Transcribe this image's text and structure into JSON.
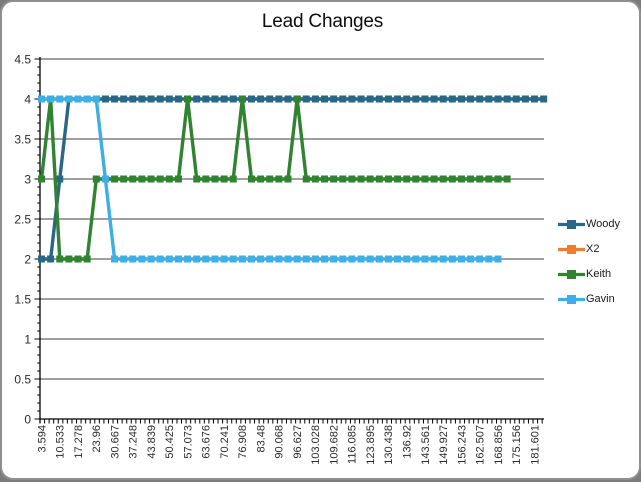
{
  "chart_data": {
    "type": "line",
    "title": "Lead Changes",
    "xlabel": "",
    "ylabel": "",
    "ylim": [
      0,
      4.5
    ],
    "y_tick_step": 0.5,
    "y_tick_labels": [
      "4.5",
      "4",
      "3.5",
      "3",
      "2.5",
      "2",
      "1.5",
      "1",
      "0.5",
      "0"
    ],
    "x_tick_labels": [
      "3.594",
      "10.533",
      "17.278",
      "23.96",
      "30.667",
      "37.248",
      "43.839",
      "50.425",
      "57.073",
      "63.676",
      "70.241",
      "76.908",
      "83.48",
      "90.068",
      "96.627",
      "103.028",
      "109.682",
      "116.085",
      "123.895",
      "130.438",
      "136.92",
      "143.561",
      "149.927",
      "156.243",
      "162.507",
      "168.856",
      "175.156",
      "181.601"
    ],
    "x_label_interval_note": "x labels are shown under every 2nd data point (points 1,3,5,... of 56)",
    "n_points": 56,
    "grid": "horizontal",
    "legend_position": "right",
    "axis_color": "#000000",
    "gridline_color": "#3f3f3f",
    "series": [
      {
        "name": "Woody",
        "color": "#2A6786",
        "values": [
          2,
          2,
          3,
          4,
          4,
          4,
          4,
          4,
          4,
          4,
          4,
          4,
          4,
          4,
          4,
          4,
          4,
          4,
          4,
          4,
          4,
          4,
          4,
          4,
          4,
          4,
          4,
          4,
          4,
          4,
          4,
          4,
          4,
          4,
          4,
          4,
          4,
          4,
          4,
          4,
          4,
          4,
          4,
          4,
          4,
          4,
          4,
          4,
          4,
          4,
          4,
          4,
          4,
          4,
          4,
          4
        ]
      },
      {
        "name": "X2",
        "color": "#ED7D31",
        "values": []
      },
      {
        "name": "Keith",
        "color": "#318331",
        "values": [
          3,
          4,
          2,
          2,
          2,
          2,
          3,
          3,
          3,
          3,
          3,
          3,
          3,
          3,
          3,
          3,
          4,
          3,
          3,
          3,
          3,
          3,
          4,
          3,
          3,
          3,
          3,
          3,
          4,
          3,
          3,
          3,
          3,
          3,
          3,
          3,
          3,
          3,
          3,
          3,
          3,
          3,
          3,
          3,
          3,
          3,
          3,
          3,
          3,
          3,
          3,
          3
        ]
      },
      {
        "name": "Gavin",
        "color": "#3FAEE3",
        "values": [
          4,
          4,
          4,
          4,
          4,
          4,
          4,
          3,
          2,
          2,
          2,
          2,
          2,
          2,
          2,
          2,
          2,
          2,
          2,
          2,
          2,
          2,
          2,
          2,
          2,
          2,
          2,
          2,
          2,
          2,
          2,
          2,
          2,
          2,
          2,
          2,
          2,
          2,
          2,
          2,
          2,
          2,
          2,
          2,
          2,
          2,
          2,
          2,
          2,
          2,
          2
        ]
      }
    ]
  }
}
